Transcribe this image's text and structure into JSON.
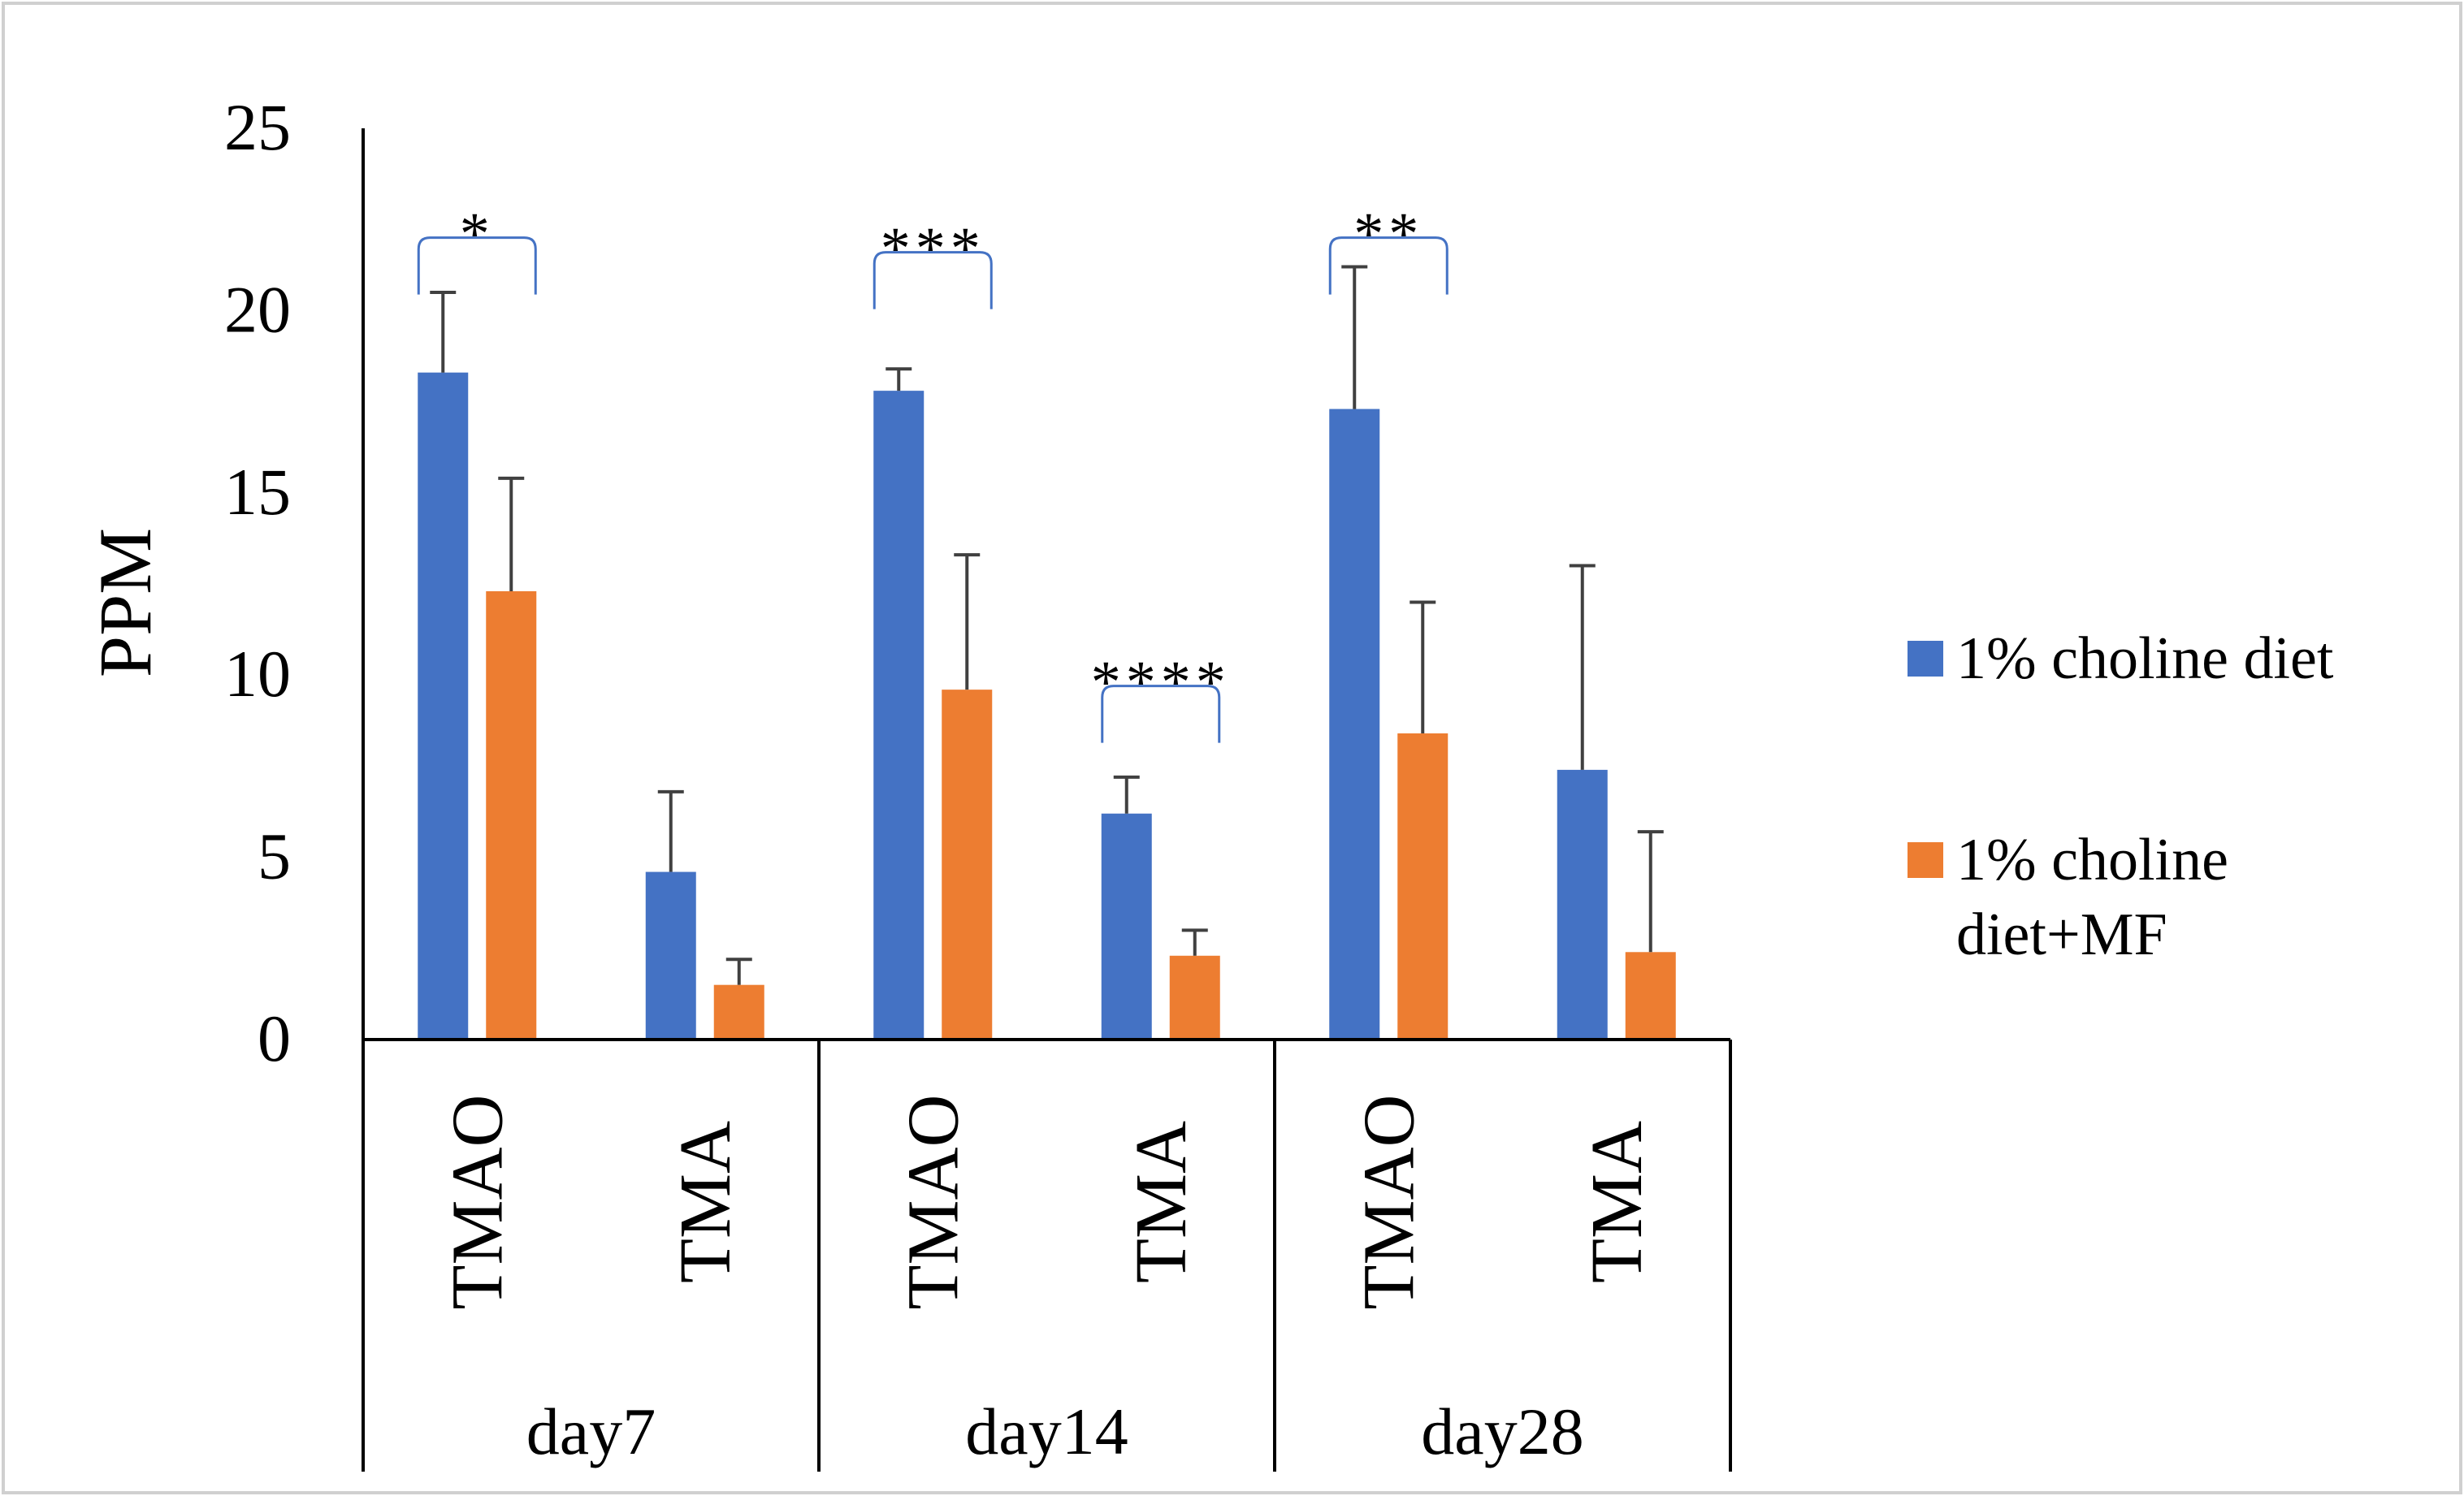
{
  "chart_data": {
    "type": "bar",
    "ylabel": "PPM",
    "ylim": [
      0,
      25
    ],
    "yticks": [
      0,
      5,
      10,
      15,
      20,
      25
    ],
    "grid": false,
    "legend_position": "right",
    "groups": [
      {
        "label": "day7",
        "categories": [
          "TMAO",
          "TMA"
        ]
      },
      {
        "label": "day14",
        "categories": [
          "TMAO",
          "TMA"
        ]
      },
      {
        "label": "day28",
        "categories": [
          "TMAO",
          "TMA"
        ]
      }
    ],
    "categories": [
      "TMAO",
      "TMA",
      "TMAO",
      "TMA",
      "TMAO",
      "TMA"
    ],
    "series": [
      {
        "name": "1% choline diet",
        "color": "#4472C4",
        "values": [
          18.3,
          4.6,
          17.8,
          6.2,
          17.3,
          7.4
        ],
        "errors": [
          2.2,
          2.2,
          0.6,
          1.0,
          3.9,
          5.6
        ]
      },
      {
        "name": "1% choline diet+MF",
        "color": "#ED7D31",
        "values": [
          12.3,
          1.5,
          9.6,
          2.3,
          8.4,
          2.4
        ],
        "errors": [
          3.1,
          0.7,
          3.7,
          0.7,
          3.6,
          3.3
        ]
      }
    ],
    "significance": [
      {
        "category_index": 0,
        "label": "*",
        "y": 22.0
      },
      {
        "category_index": 2,
        "label": "***",
        "y": 21.6
      },
      {
        "category_index": 3,
        "label": "****",
        "y": 9.7
      },
      {
        "category_index": 4,
        "label": "**",
        "y": 22.0
      }
    ],
    "legend_lines": [
      [
        "1% choline diet"
      ],
      [
        "1% choline",
        "diet+MF"
      ]
    ],
    "axis_color": "#000000",
    "bracket_color": "#4472C4"
  }
}
